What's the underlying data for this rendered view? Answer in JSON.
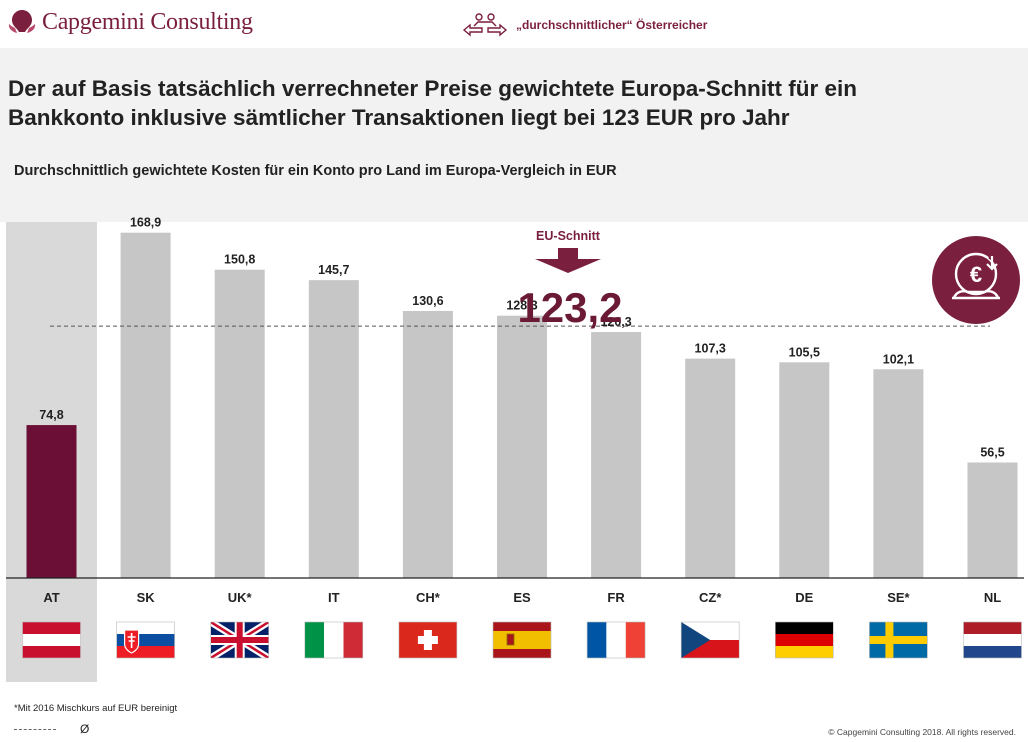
{
  "header": {
    "logo_text": "Capgemini Consulting",
    "nav_label": "„durchschnittlicher“ Österreicher"
  },
  "headline": {
    "line1": "Der auf Basis tatsächlich verrechneter Preise gewichtete Europa-Schnitt für ein",
    "line2": "Bankkonto inklusive sämtlicher Transaktionen liegt bei 123 EUR pro Jahr"
  },
  "subheadline": "Durchschnittlich gewichtete Kosten für ein Konto pro Land im Europa-Vergleich in EUR",
  "eu_average": {
    "label": "EU-Schnitt",
    "value_label": "123,2"
  },
  "colors": {
    "highlight": "#6b0f36",
    "bar": "#c6c6c6",
    "accent": "#7a1f3d"
  },
  "icons": [
    "capgemini-logo-icon",
    "people-exchange-icon",
    "euro-refresh-icon"
  ],
  "chart_data": {
    "type": "bar",
    "categories": [
      "AT",
      "SK",
      "UK*",
      "IT",
      "CH*",
      "ES",
      "FR",
      "CZ*",
      "DE",
      "SE*",
      "NL"
    ],
    "values": [
      74.8,
      168.9,
      150.8,
      145.7,
      130.6,
      128.3,
      120.3,
      107.3,
      105.5,
      102.1,
      56.5
    ],
    "value_labels": [
      "74,8",
      "168,9",
      "150,8",
      "145,7",
      "130,6",
      "128,3",
      "120,3",
      "107,3",
      "105,5",
      "102,1",
      "56,5"
    ],
    "highlight_category": "AT",
    "reference_line": {
      "value": 123.2,
      "style": "dashed"
    },
    "ylim": [
      0,
      180
    ],
    "grid": false,
    "flags": [
      "AT",
      "SK",
      "GB",
      "IT",
      "CH",
      "ES",
      "FR",
      "CZ",
      "DE",
      "SE",
      "NL"
    ]
  },
  "footer": {
    "footnote": "*Mit 2016 Mischkurs auf EUR bereinigt",
    "avg_symbol": "Ø",
    "copyright": "© Capgemini Consulting 2018. All rights reserved."
  }
}
